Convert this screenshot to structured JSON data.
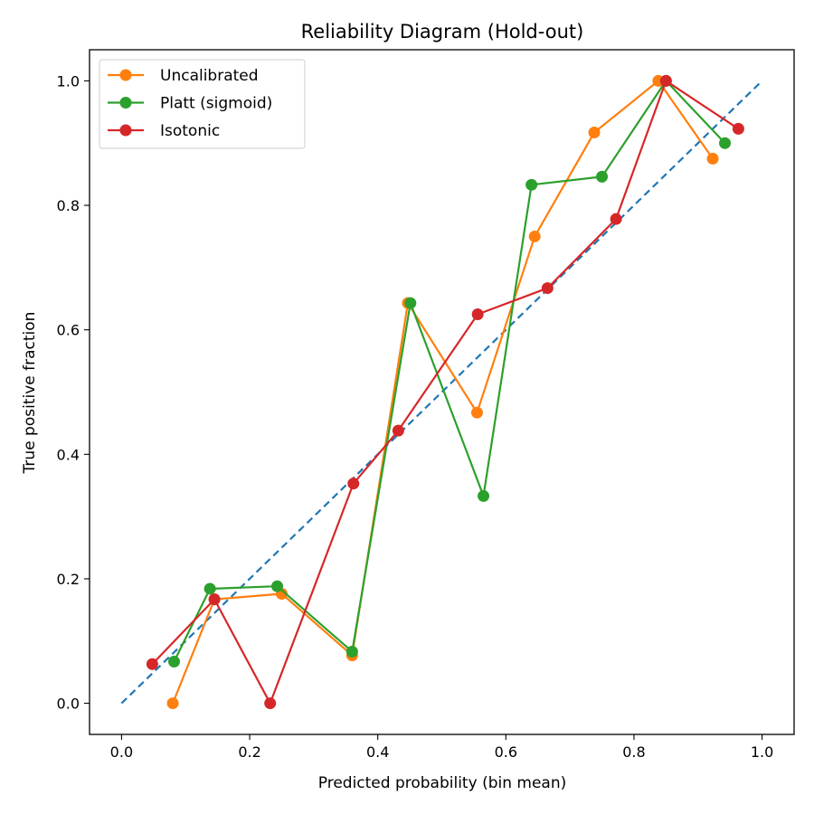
{
  "chart_data": {
    "type": "line",
    "title": "Reliability Diagram (Hold-out)",
    "xlabel": "Predicted probability (bin mean)",
    "ylabel": "True positive fraction",
    "xlim": [
      -0.05,
      1.05
    ],
    "ylim": [
      -0.05,
      1.05
    ],
    "xticks": [
      "0.0",
      "0.2",
      "0.4",
      "0.6",
      "0.8",
      "1.0"
    ],
    "yticks": [
      "0.0",
      "0.2",
      "0.4",
      "0.6",
      "0.8",
      "1.0"
    ],
    "grid": false,
    "legend_position": "top-left",
    "reference_line": {
      "style": "dashed",
      "color": "#1f77b4",
      "points": [
        [
          0,
          0
        ],
        [
          1,
          1
        ]
      ]
    },
    "series": [
      {
        "name": "Uncalibrated",
        "color": "#ff7f0e",
        "marker": "circle",
        "points": [
          [
            0.08,
            0.0
          ],
          [
            0.145,
            0.167
          ],
          [
            0.25,
            0.176
          ],
          [
            0.36,
            0.077
          ],
          [
            0.447,
            0.643
          ],
          [
            0.555,
            0.467
          ],
          [
            0.645,
            0.75
          ],
          [
            0.738,
            0.917
          ],
          [
            0.838,
            1.0
          ],
          [
            0.923,
            0.875
          ]
        ]
      },
      {
        "name": "Platt (sigmoid)",
        "color": "#2ca02c",
        "marker": "circle",
        "points": [
          [
            0.082,
            0.067
          ],
          [
            0.138,
            0.184
          ],
          [
            0.243,
            0.188
          ],
          [
            0.36,
            0.083
          ],
          [
            0.451,
            0.643
          ],
          [
            0.565,
            0.333
          ],
          [
            0.64,
            0.833
          ],
          [
            0.75,
            0.846
          ],
          [
            0.85,
            1.0
          ],
          [
            0.942,
            0.9
          ]
        ]
      },
      {
        "name": "Isotonic",
        "color": "#d62728",
        "marker": "circle",
        "points": [
          [
            0.048,
            0.063
          ],
          [
            0.145,
            0.167
          ],
          [
            0.232,
            0.0
          ],
          [
            0.362,
            0.353
          ],
          [
            0.432,
            0.438
          ],
          [
            0.556,
            0.625
          ],
          [
            0.665,
            0.667
          ],
          [
            0.772,
            0.778
          ],
          [
            0.85,
            1.0
          ],
          [
            0.963,
            0.923
          ]
        ]
      }
    ]
  }
}
